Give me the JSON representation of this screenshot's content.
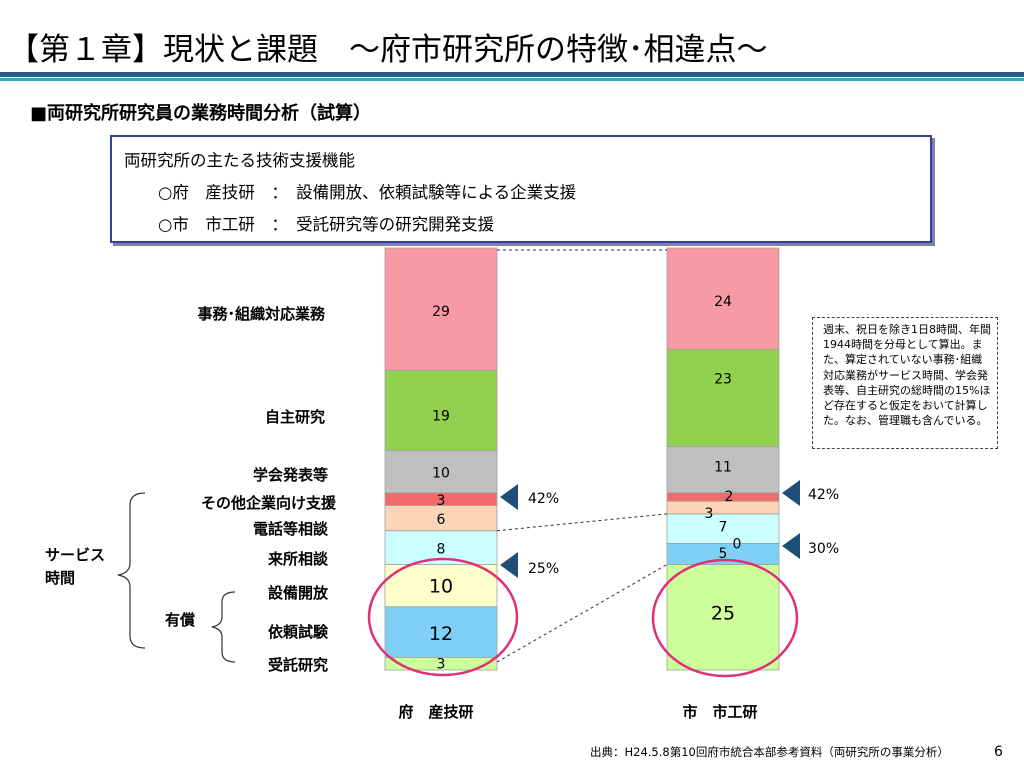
{
  "header": {
    "title": "【第１章】現状と課題　～府市研究所の特徴･相違点～",
    "subtitle": "■両研究所研究員の業務時間分析（試算）"
  },
  "infobox": {
    "line1": "両研究所の主たる技術支援機能",
    "line2": "○府　産技研　：　設備開放、依頼試験等による企業支援",
    "line3": "○市　市工研　：　受託研究等の研究開発支援"
  },
  "note": "週末、祝日を除き1日8時間、年間1944時間を分母として算出。また、算定されていない事務･組織対応業務がサービス時間、学会発表等、自主研究の総時間の15%ほど存在すると仮定をおいて計算した。なお、管理職も含んでいる。",
  "row_labels": {
    "jimu": "事務･組織対応業務",
    "jishu": "自主研究",
    "gakkai": "学会発表等",
    "sonota": "その他企業向け支援",
    "denwa": "電話等相談",
    "raisho": "来所相談",
    "setsubi": "設備開放",
    "irai": "依頼試験",
    "jutaku": "受託研究",
    "service": "サービス\n時間",
    "yusho": "有償"
  },
  "pct_labels": {
    "fu_top": "42%",
    "fu_bottom": "25%",
    "shi_top": "42%",
    "shi_bottom": "30%"
  },
  "footer": {
    "source": "出典：H24.5.8第10回府市統合本部参考資料（両研究所の事業分析）",
    "page": "6"
  },
  "colors": {
    "jimu": "#f79aa3",
    "jishu": "#92d050",
    "gakkai": "#bfbfbf",
    "sonota": "#f26b6b",
    "denwa": "#fbd5b5",
    "raisho": "#ccffff",
    "setsubi": "#ffffcc",
    "irai": "#7fd0f5",
    "jutaku": "#ccff99",
    "circle": "#e0307a",
    "arrow": "#1f4e79"
  },
  "chart_data": {
    "type": "bar",
    "stacked": true,
    "categories": [
      "府　産技研",
      "市　市工研"
    ],
    "segments_order_bottom_to_top": [
      "受託研究",
      "依頼試験",
      "設備開放",
      "来所相談",
      "電話等相談",
      "その他企業向け支援",
      "学会発表等",
      "自主研究",
      "事務･組織対応業務"
    ],
    "series": [
      {
        "name": "受託研究",
        "key": "jutaku",
        "values": [
          3,
          25
        ]
      },
      {
        "name": "依頼試験",
        "key": "irai",
        "values": [
          12,
          5
        ]
      },
      {
        "name": "設備開放",
        "key": "setsubi",
        "values": [
          10,
          0
        ]
      },
      {
        "name": "来所相談",
        "key": "raisho",
        "values": [
          8,
          7
        ]
      },
      {
        "name": "電話等相談",
        "key": "denwa",
        "values": [
          6,
          3
        ]
      },
      {
        "name": "その他企業向け支援",
        "key": "sonota",
        "values": [
          3,
          2
        ]
      },
      {
        "name": "学会発表等",
        "key": "gakkai",
        "values": [
          10,
          11
        ]
      },
      {
        "name": "自主研究",
        "key": "jishu",
        "values": [
          19,
          23
        ]
      },
      {
        "name": "事務･組織対応業務",
        "key": "jimu",
        "values": [
          29,
          24
        ]
      }
    ],
    "ylim": [
      0,
      100
    ]
  }
}
